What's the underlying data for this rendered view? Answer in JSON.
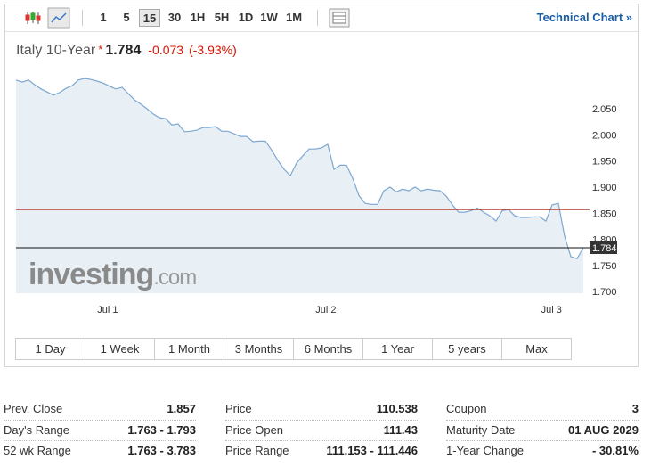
{
  "toolbar": {
    "intervals": [
      "1",
      "5",
      "15",
      "30",
      "1H",
      "5H",
      "1D",
      "1W",
      "1M"
    ],
    "active_interval": 2,
    "link": "Technical Chart »"
  },
  "header": {
    "name": "Italy 10-Year",
    "marker": "*",
    "price": "1.784",
    "change": "-0.073",
    "change_pct": "(-3.93%)",
    "change_color": "#d91400"
  },
  "chart_data": {
    "type": "line",
    "color": "#7ea7d0",
    "fill": "#e4edf5",
    "values": [
      2.105,
      2.101,
      2.105,
      2.096,
      2.088,
      2.082,
      2.076,
      2.081,
      2.089,
      2.094,
      2.105,
      2.108,
      2.106,
      2.103,
      2.099,
      2.093,
      2.088,
      2.091,
      2.079,
      2.067,
      2.059,
      2.05,
      2.04,
      2.033,
      2.031,
      2.019,
      2.021,
      2.006,
      2.007,
      2.009,
      2.014,
      2.014,
      2.016,
      2.007,
      2.007,
      2.002,
      1.997,
      1.997,
      1.987,
      1.988,
      1.988,
      1.971,
      1.951,
      1.934,
      1.922,
      1.946,
      1.96,
      1.973,
      1.973,
      1.975,
      1.982,
      1.934,
      1.942,
      1.942,
      1.917,
      1.884,
      1.869,
      1.867,
      1.867,
      1.893,
      1.9,
      1.891,
      1.896,
      1.893,
      1.9,
      1.893,
      1.896,
      1.894,
      1.893,
      1.883,
      1.866,
      1.852,
      1.852,
      1.855,
      1.86,
      1.852,
      1.845,
      1.835,
      1.855,
      1.857,
      1.845,
      1.842,
      1.842,
      1.843,
      1.843,
      1.835,
      1.866,
      1.869,
      1.806,
      1.767,
      1.763,
      1.784
    ],
    "xlim": [
      0,
      92
    ],
    "xticks": [
      {
        "value": 14.7,
        "label": "Jul 1"
      },
      {
        "value": 49.7,
        "label": "Jul 2"
      },
      {
        "value": 85.9,
        "label": "Jul 3"
      }
    ],
    "ylim": [
      1.697,
      2.12
    ],
    "yticks": [
      {
        "value": 1.7,
        "label": "1.700"
      },
      {
        "value": 1.75,
        "label": "1.750"
      },
      {
        "value": 1.8,
        "label": "1.800"
      },
      {
        "value": 1.85,
        "label": "1.850"
      },
      {
        "value": 1.9,
        "label": "1.900"
      },
      {
        "value": 1.95,
        "label": "1.950"
      },
      {
        "value": 2.0,
        "label": "2.000"
      },
      {
        "value": 2.05,
        "label": "2.050"
      }
    ],
    "ref_lines": [
      {
        "value": 1.857,
        "color": "#b83a2e"
      },
      {
        "value": 1.784,
        "color": "#111111",
        "tag": true
      }
    ],
    "watermark": [
      "investing",
      ".com"
    ]
  },
  "ranges": [
    "1 Day",
    "1 Week",
    "1 Month",
    "3 Months",
    "6 Months",
    "1 Year",
    "5 years",
    "Max"
  ],
  "stats": [
    [
      [
        "Prev. Close",
        "1.857"
      ],
      [
        "Day's Range",
        "1.763 - 1.793"
      ],
      [
        "52 wk Range",
        "1.763 - 3.783"
      ]
    ],
    [
      [
        "Price",
        "110.538"
      ],
      [
        "Price Open",
        "111.43"
      ],
      [
        "Price Range",
        "111.153 - 111.446"
      ]
    ],
    [
      [
        "Coupon",
        "3"
      ],
      [
        "Maturity Date",
        "01 AUG 2029"
      ],
      [
        "1-Year Change",
        "- 30.81%"
      ]
    ]
  ]
}
